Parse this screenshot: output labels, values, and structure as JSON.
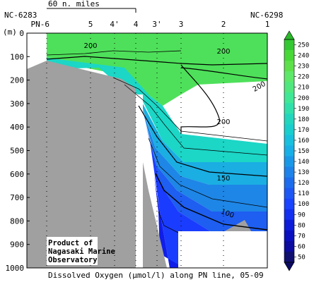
{
  "chart_data": {
    "type": "heatmap",
    "title": "Dissolved Oxygen (µmol/l)  along PN line, 05-09",
    "title_prefix": "Dissolved Oxygen (",
    "title_unit": "µmol/l",
    "title_suffix": ")  along PN line, 05-09",
    "ylabel": "(m)",
    "scale_bar_label": "60 n. miles",
    "left_endpoint": "NC-6283",
    "right_endpoint": "NC-6298",
    "stations": [
      "PN-6",
      "5",
      "4'",
      "4",
      "3'",
      "3",
      "2",
      "1"
    ],
    "y_ticks": [
      0,
      100,
      200,
      300,
      400,
      500,
      600,
      700,
      800,
      900,
      1000
    ],
    "ylim": [
      1000,
      0
    ],
    "colorbar": {
      "ticks": [
        250,
        240,
        230,
        220,
        210,
        200,
        190,
        180,
        170,
        160,
        150,
        140,
        130,
        120,
        110,
        100,
        90,
        80,
        70,
        60,
        50
      ],
      "range": [
        50,
        250
      ]
    },
    "contour_labels": [
      {
        "value": "200"
      },
      {
        "value": "200"
      },
      {
        "value": "200"
      },
      {
        "value": "200"
      },
      {
        "value": "150"
      },
      {
        "value": "100"
      }
    ],
    "note": [
      "Product of",
      "Nagasaki Marine",
      "Observatory"
    ]
  },
  "colors": {
    "seafloor": "#a0a0a0",
    "c250": "#4ee05a",
    "c200": "#34e896",
    "c180": "#1cd6c6",
    "c160": "#1aaee2",
    "c150": "#1e86e6",
    "c130": "#1e5ef0",
    "c110": "#1a3cff",
    "c90": "#101ee8",
    "c70": "#0a0ac8",
    "c50": "#101088"
  }
}
